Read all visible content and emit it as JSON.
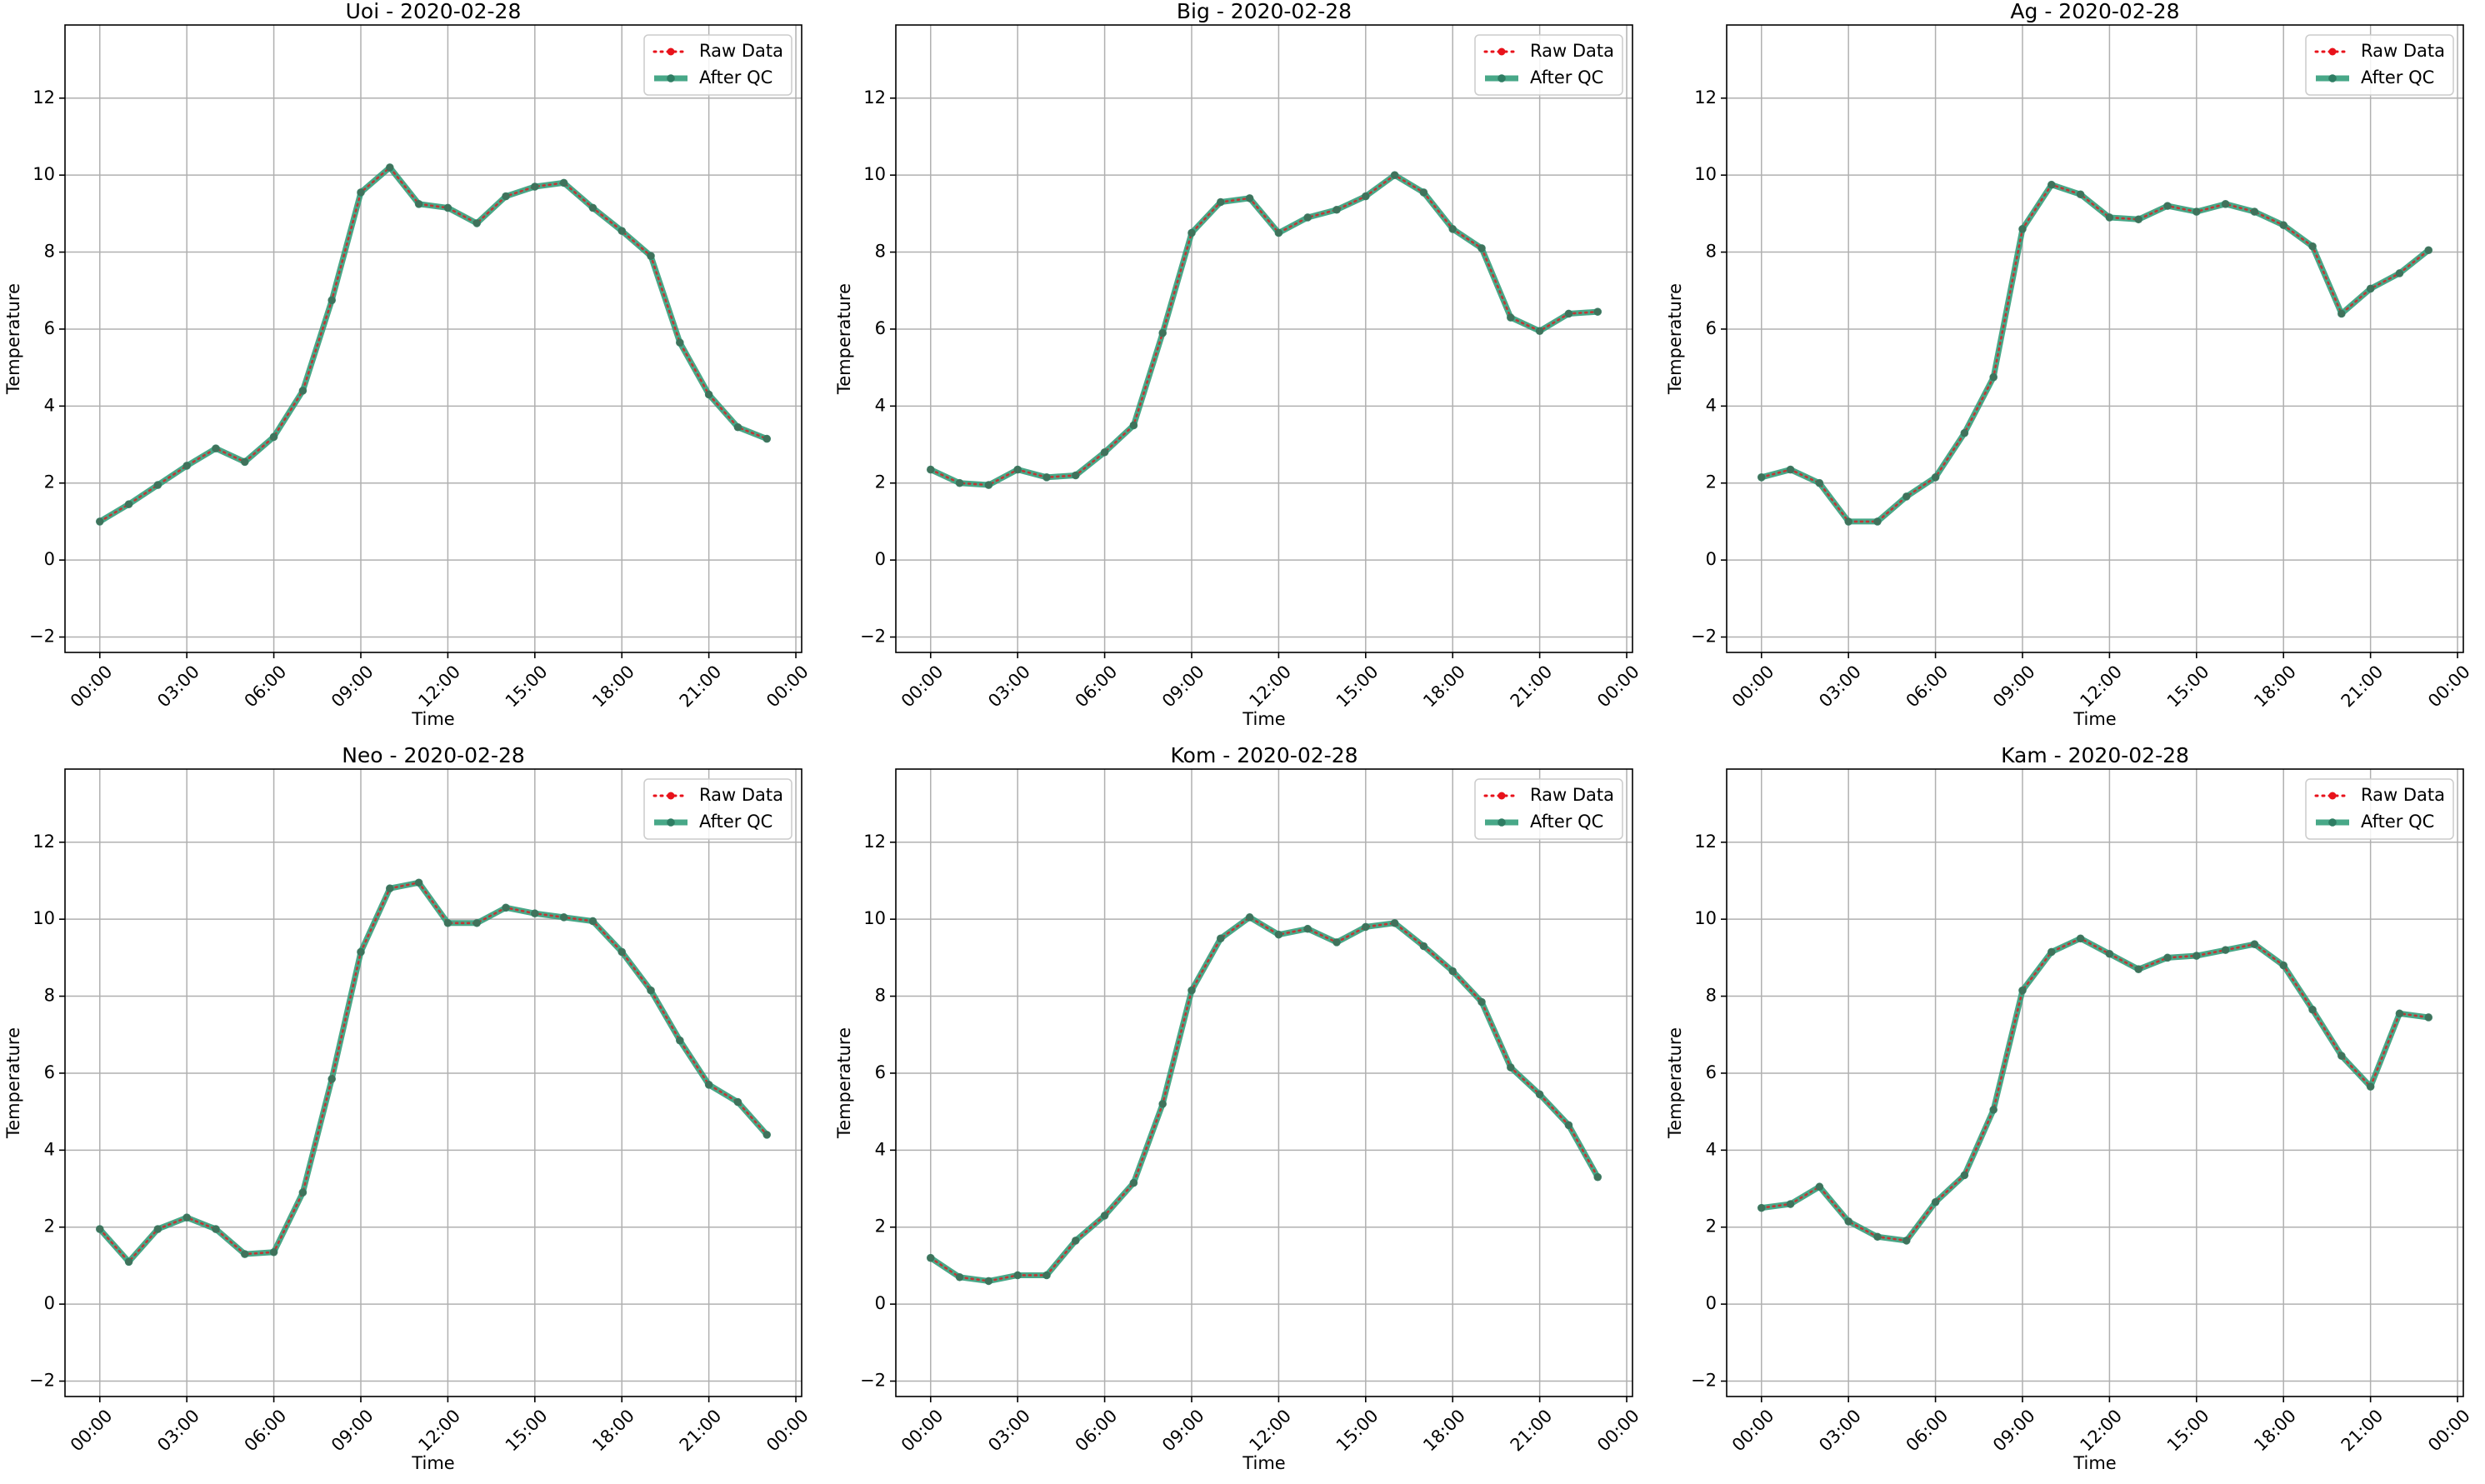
{
  "colors": {
    "raw": "#e8121b",
    "qc_line": "#2f9c78",
    "qc_marker": "#2e7d63",
    "grid": "#b0b0b0"
  },
  "chart_data": [
    {
      "type": "line",
      "title": "Uoi - 2020-02-28",
      "xlabel": "Time",
      "ylabel": "Temperature",
      "x_unit": "hour of day",
      "xlim": [
        -1.2,
        24.2
      ],
      "ylim": [
        -2.4,
        13.9
      ],
      "xticks": [
        0,
        3,
        6,
        9,
        12,
        15,
        18,
        21,
        24
      ],
      "xtick_labels": [
        "00:00",
        "03:00",
        "06:00",
        "09:00",
        "12:00",
        "15:00",
        "18:00",
        "21:00",
        "00:00"
      ],
      "yticks": [
        -2,
        0,
        2,
        4,
        6,
        8,
        10,
        12
      ],
      "ytick_labels": [
        "−2",
        "0",
        "2",
        "4",
        "6",
        "8",
        "10",
        "12"
      ],
      "grid": true,
      "legend_position": "upper right",
      "x": [
        0,
        1,
        2,
        3,
        4,
        5,
        6,
        7,
        8,
        9,
        10,
        11,
        12,
        13,
        14,
        15,
        16,
        17,
        18,
        19,
        20,
        21,
        22,
        23
      ],
      "series": [
        {
          "name": "Raw Data",
          "style": "dotted",
          "values": [
            1.0,
            1.45,
            1.95,
            2.45,
            2.9,
            2.55,
            3.2,
            4.4,
            6.75,
            9.55,
            10.2,
            9.25,
            9.15,
            8.75,
            9.45,
            9.7,
            9.8,
            9.15,
            8.55,
            7.9,
            5.65,
            4.3,
            3.45,
            3.15
          ]
        },
        {
          "name": "After QC",
          "style": "solid",
          "values": [
            1.0,
            1.45,
            1.95,
            2.45,
            2.9,
            2.55,
            3.2,
            4.4,
            6.75,
            9.55,
            10.2,
            9.25,
            9.15,
            8.75,
            9.45,
            9.7,
            9.8,
            9.15,
            8.55,
            7.9,
            5.65,
            4.3,
            3.45,
            3.15
          ]
        }
      ]
    },
    {
      "type": "line",
      "title": "Big - 2020-02-28",
      "xlabel": "Time",
      "ylabel": "Temperature",
      "x_unit": "hour of day",
      "xlim": [
        -1.2,
        24.2
      ],
      "ylim": [
        -2.4,
        13.9
      ],
      "xticks": [
        0,
        3,
        6,
        9,
        12,
        15,
        18,
        21,
        24
      ],
      "xtick_labels": [
        "00:00",
        "03:00",
        "06:00",
        "09:00",
        "12:00",
        "15:00",
        "18:00",
        "21:00",
        "00:00"
      ],
      "yticks": [
        -2,
        0,
        2,
        4,
        6,
        8,
        10,
        12
      ],
      "ytick_labels": [
        "−2",
        "0",
        "2",
        "4",
        "6",
        "8",
        "10",
        "12"
      ],
      "grid": true,
      "legend_position": "upper right",
      "x": [
        0,
        1,
        2,
        3,
        4,
        5,
        6,
        7,
        8,
        9,
        10,
        11,
        12,
        13,
        14,
        15,
        16,
        17,
        18,
        19,
        20,
        21,
        22,
        23
      ],
      "series": [
        {
          "name": "Raw Data",
          "style": "dotted",
          "values": [
            2.35,
            2.0,
            1.95,
            2.35,
            2.15,
            2.2,
            2.8,
            3.5,
            5.9,
            8.5,
            9.3,
            9.4,
            8.5,
            8.9,
            9.1,
            9.45,
            10.0,
            9.55,
            8.6,
            8.1,
            6.3,
            5.95,
            6.4,
            6.45
          ]
        },
        {
          "name": "After QC",
          "style": "solid",
          "values": [
            2.35,
            2.0,
            1.95,
            2.35,
            2.15,
            2.2,
            2.8,
            3.5,
            5.9,
            8.5,
            9.3,
            9.4,
            8.5,
            8.9,
            9.1,
            9.45,
            10.0,
            9.55,
            8.6,
            8.1,
            6.3,
            5.95,
            6.4,
            6.45
          ]
        }
      ]
    },
    {
      "type": "line",
      "title": "Ag - 2020-02-28",
      "xlabel": "Time",
      "ylabel": "Temperature",
      "x_unit": "hour of day",
      "xlim": [
        -1.2,
        24.2
      ],
      "ylim": [
        -2.4,
        13.9
      ],
      "xticks": [
        0,
        3,
        6,
        9,
        12,
        15,
        18,
        21,
        24
      ],
      "xtick_labels": [
        "00:00",
        "03:00",
        "06:00",
        "09:00",
        "12:00",
        "15:00",
        "18:00",
        "21:00",
        "00:00"
      ],
      "yticks": [
        -2,
        0,
        2,
        4,
        6,
        8,
        10,
        12
      ],
      "ytick_labels": [
        "−2",
        "0",
        "2",
        "4",
        "6",
        "8",
        "10",
        "12"
      ],
      "grid": true,
      "legend_position": "upper right",
      "x": [
        0,
        1,
        2,
        3,
        4,
        5,
        6,
        7,
        8,
        9,
        10,
        11,
        12,
        13,
        14,
        15,
        16,
        17,
        18,
        19,
        20,
        21,
        22,
        23
      ],
      "series": [
        {
          "name": "Raw Data",
          "style": "dotted",
          "values": [
            2.15,
            2.35,
            2.0,
            1.0,
            1.0,
            1.65,
            2.15,
            3.3,
            4.75,
            8.6,
            9.75,
            9.5,
            8.9,
            8.85,
            9.2,
            9.05,
            9.25,
            9.05,
            8.7,
            8.15,
            6.4,
            7.05,
            7.45,
            8.05
          ]
        },
        {
          "name": "After QC",
          "style": "solid",
          "values": [
            2.15,
            2.35,
            2.0,
            1.0,
            1.0,
            1.65,
            2.15,
            3.3,
            4.75,
            8.6,
            9.75,
            9.5,
            8.9,
            8.85,
            9.2,
            9.05,
            9.25,
            9.05,
            8.7,
            8.15,
            6.4,
            7.05,
            7.45,
            8.05
          ]
        }
      ]
    },
    {
      "type": "line",
      "title": "Neo - 2020-02-28",
      "xlabel": "Time",
      "ylabel": "Temperature",
      "x_unit": "hour of day",
      "xlim": [
        -1.2,
        24.2
      ],
      "ylim": [
        -2.4,
        13.9
      ],
      "xticks": [
        0,
        3,
        6,
        9,
        12,
        15,
        18,
        21,
        24
      ],
      "xtick_labels": [
        "00:00",
        "03:00",
        "06:00",
        "09:00",
        "12:00",
        "15:00",
        "18:00",
        "21:00",
        "00:00"
      ],
      "yticks": [
        -2,
        0,
        2,
        4,
        6,
        8,
        10,
        12
      ],
      "ytick_labels": [
        "−2",
        "0",
        "2",
        "4",
        "6",
        "8",
        "10",
        "12"
      ],
      "grid": true,
      "legend_position": "upper right",
      "x": [
        0,
        1,
        2,
        3,
        4,
        5,
        6,
        7,
        8,
        9,
        10,
        11,
        12,
        13,
        14,
        15,
        16,
        17,
        18,
        19,
        20,
        21,
        22,
        23
      ],
      "series": [
        {
          "name": "Raw Data",
          "style": "dotted",
          "values": [
            1.95,
            1.1,
            1.95,
            2.25,
            1.95,
            1.3,
            1.35,
            2.9,
            5.85,
            9.15,
            10.8,
            10.95,
            9.9,
            9.9,
            10.3,
            10.15,
            10.05,
            9.95,
            9.15,
            8.15,
            6.85,
            5.7,
            5.25,
            4.4
          ]
        },
        {
          "name": "After QC",
          "style": "solid",
          "values": [
            1.95,
            1.1,
            1.95,
            2.25,
            1.95,
            1.3,
            1.35,
            2.9,
            5.85,
            9.15,
            10.8,
            10.95,
            9.9,
            9.9,
            10.3,
            10.15,
            10.05,
            9.95,
            9.15,
            8.15,
            6.85,
            5.7,
            5.25,
            4.4
          ]
        }
      ]
    },
    {
      "type": "line",
      "title": "Kom - 2020-02-28",
      "xlabel": "Time",
      "ylabel": "Temperature",
      "x_unit": "hour of day",
      "xlim": [
        -1.2,
        24.2
      ],
      "ylim": [
        -2.4,
        13.9
      ],
      "xticks": [
        0,
        3,
        6,
        9,
        12,
        15,
        18,
        21,
        24
      ],
      "xtick_labels": [
        "00:00",
        "03:00",
        "06:00",
        "09:00",
        "12:00",
        "15:00",
        "18:00",
        "21:00",
        "00:00"
      ],
      "yticks": [
        -2,
        0,
        2,
        4,
        6,
        8,
        10,
        12
      ],
      "ytick_labels": [
        "−2",
        "0",
        "2",
        "4",
        "6",
        "8",
        "10",
        "12"
      ],
      "grid": true,
      "legend_position": "upper right",
      "x": [
        0,
        1,
        2,
        3,
        4,
        5,
        6,
        7,
        8,
        9,
        10,
        11,
        12,
        13,
        14,
        15,
        16,
        17,
        18,
        19,
        20,
        21,
        22,
        23
      ],
      "series": [
        {
          "name": "Raw Data",
          "style": "dotted",
          "values": [
            1.2,
            0.7,
            0.6,
            0.75,
            0.75,
            1.65,
            2.3,
            3.15,
            5.2,
            8.15,
            9.5,
            10.05,
            9.6,
            9.75,
            9.4,
            9.8,
            9.9,
            9.3,
            8.65,
            7.85,
            6.15,
            5.45,
            4.65,
            3.3
          ]
        },
        {
          "name": "After QC",
          "style": "solid",
          "values": [
            1.2,
            0.7,
            0.6,
            0.75,
            0.75,
            1.65,
            2.3,
            3.15,
            5.2,
            8.15,
            9.5,
            10.05,
            9.6,
            9.75,
            9.4,
            9.8,
            9.9,
            9.3,
            8.65,
            7.85,
            6.15,
            5.45,
            4.65,
            3.3
          ]
        }
      ]
    },
    {
      "type": "line",
      "title": "Kam - 2020-02-28",
      "xlabel": "Time",
      "ylabel": "Temperature",
      "x_unit": "hour of day",
      "xlim": [
        -1.2,
        24.2
      ],
      "ylim": [
        -2.4,
        13.9
      ],
      "xticks": [
        0,
        3,
        6,
        9,
        12,
        15,
        18,
        21,
        24
      ],
      "xtick_labels": [
        "00:00",
        "03:00",
        "06:00",
        "09:00",
        "12:00",
        "15:00",
        "18:00",
        "21:00",
        "00:00"
      ],
      "yticks": [
        -2,
        0,
        2,
        4,
        6,
        8,
        10,
        12
      ],
      "ytick_labels": [
        "−2",
        "0",
        "2",
        "4",
        "6",
        "8",
        "10",
        "12"
      ],
      "grid": true,
      "legend_position": "upper right",
      "x": [
        0,
        1,
        2,
        3,
        4,
        5,
        6,
        7,
        8,
        9,
        10,
        11,
        12,
        13,
        14,
        15,
        16,
        17,
        18,
        19,
        20,
        21,
        22,
        23
      ],
      "series": [
        {
          "name": "Raw Data",
          "style": "dotted",
          "values": [
            2.5,
            2.6,
            3.05,
            2.15,
            1.75,
            1.65,
            2.65,
            3.35,
            5.05,
            8.15,
            9.15,
            9.5,
            9.1,
            8.7,
            9.0,
            9.05,
            9.2,
            9.35,
            8.8,
            7.65,
            6.45,
            5.65,
            7.55,
            7.45
          ]
        },
        {
          "name": "After QC",
          "style": "solid",
          "values": [
            2.5,
            2.6,
            3.05,
            2.15,
            1.75,
            1.65,
            2.65,
            3.35,
            5.05,
            8.15,
            9.15,
            9.5,
            9.1,
            8.7,
            9.0,
            9.05,
            9.2,
            9.35,
            8.8,
            7.65,
            6.45,
            5.65,
            7.55,
            7.45
          ]
        }
      ]
    }
  ]
}
